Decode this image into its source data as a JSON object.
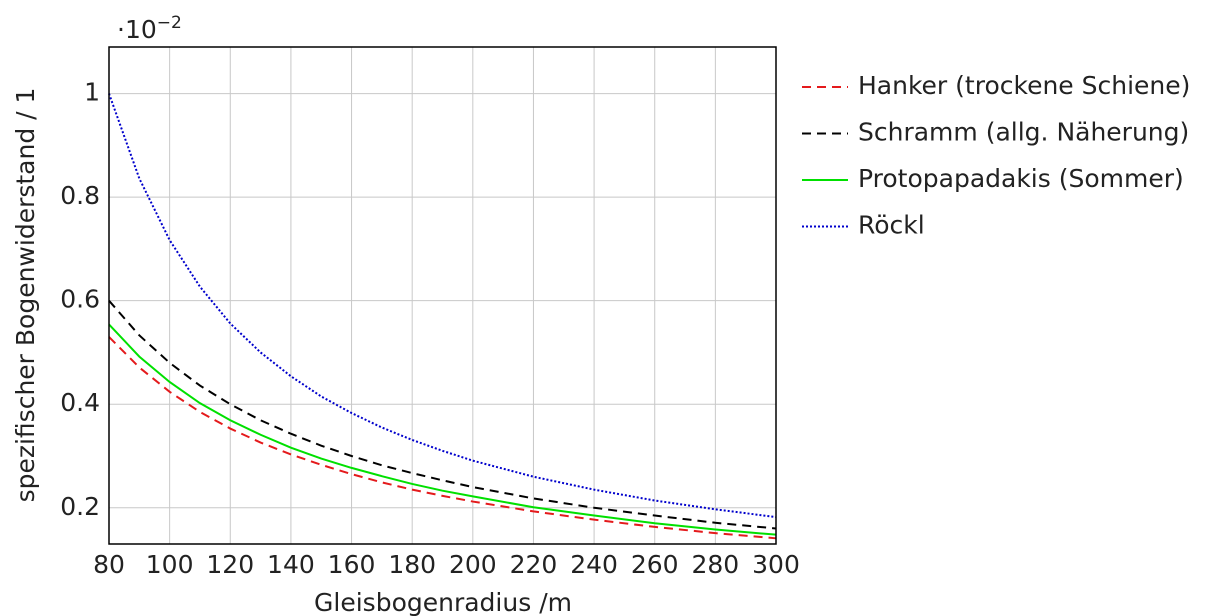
{
  "chart_data": {
    "type": "line",
    "title": "",
    "xlabel": "Gleisbogenradius /m",
    "ylabel": "spezifischer Bogenwiderstand / 1",
    "y_scale_note": "·10",
    "y_scale_exponent": "−2",
    "xlim": [
      80,
      300
    ],
    "ylim": [
      0.13,
      1.09
    ],
    "xticks": [
      80,
      100,
      120,
      140,
      160,
      180,
      200,
      220,
      240,
      260,
      280,
      300
    ],
    "yticks": [
      0.2,
      0.4,
      0.6,
      0.8,
      1
    ],
    "ytick_labels": [
      "0.2",
      "0.4",
      "0.6",
      "0.8",
      "1"
    ],
    "grid": true,
    "legend_position": "right",
    "series": [
      {
        "name": "Hanker (trockene Schiene)",
        "color": "#e41a1c",
        "dash": "dashed",
        "x": [
          80,
          90,
          100,
          110,
          120,
          130,
          140,
          150,
          160,
          170,
          180,
          190,
          200,
          220,
          240,
          260,
          280,
          300
        ],
        "y": [
          0.53,
          0.471,
          0.424,
          0.385,
          0.353,
          0.326,
          0.303,
          0.283,
          0.265,
          0.249,
          0.235,
          0.223,
          0.212,
          0.193,
          0.177,
          0.163,
          0.151,
          0.141
        ]
      },
      {
        "name": "Schramm (allg. Näherung)",
        "color": "#000000",
        "dash": "dashed",
        "x": [
          80,
          90,
          100,
          110,
          120,
          130,
          140,
          150,
          160,
          170,
          180,
          190,
          200,
          220,
          240,
          260,
          280,
          300
        ],
        "y": [
          0.6,
          0.533,
          0.48,
          0.436,
          0.4,
          0.369,
          0.343,
          0.32,
          0.3,
          0.282,
          0.267,
          0.253,
          0.24,
          0.218,
          0.2,
          0.185,
          0.171,
          0.16
        ]
      },
      {
        "name": "Protopapadakis (Sommer)",
        "color": "#00e000",
        "dash": "solid",
        "x": [
          80,
          90,
          100,
          110,
          120,
          130,
          140,
          150,
          160,
          170,
          180,
          190,
          200,
          220,
          240,
          260,
          280,
          300
        ],
        "y": [
          0.554,
          0.492,
          0.443,
          0.402,
          0.369,
          0.341,
          0.316,
          0.295,
          0.277,
          0.261,
          0.246,
          0.233,
          0.222,
          0.201,
          0.185,
          0.17,
          0.158,
          0.148
        ]
      },
      {
        "name": "Röckl",
        "color": "#0000cc",
        "dash": "dotted",
        "x": [
          80,
          90,
          100,
          110,
          120,
          130,
          140,
          150,
          160,
          170,
          180,
          190,
          200,
          220,
          240,
          260,
          280,
          300
        ],
        "y": [
          1.0,
          0.836,
          0.717,
          0.627,
          0.556,
          0.5,
          0.454,
          0.415,
          0.383,
          0.355,
          0.331,
          0.31,
          0.291,
          0.26,
          0.235,
          0.214,
          0.197,
          0.182
        ]
      }
    ]
  }
}
